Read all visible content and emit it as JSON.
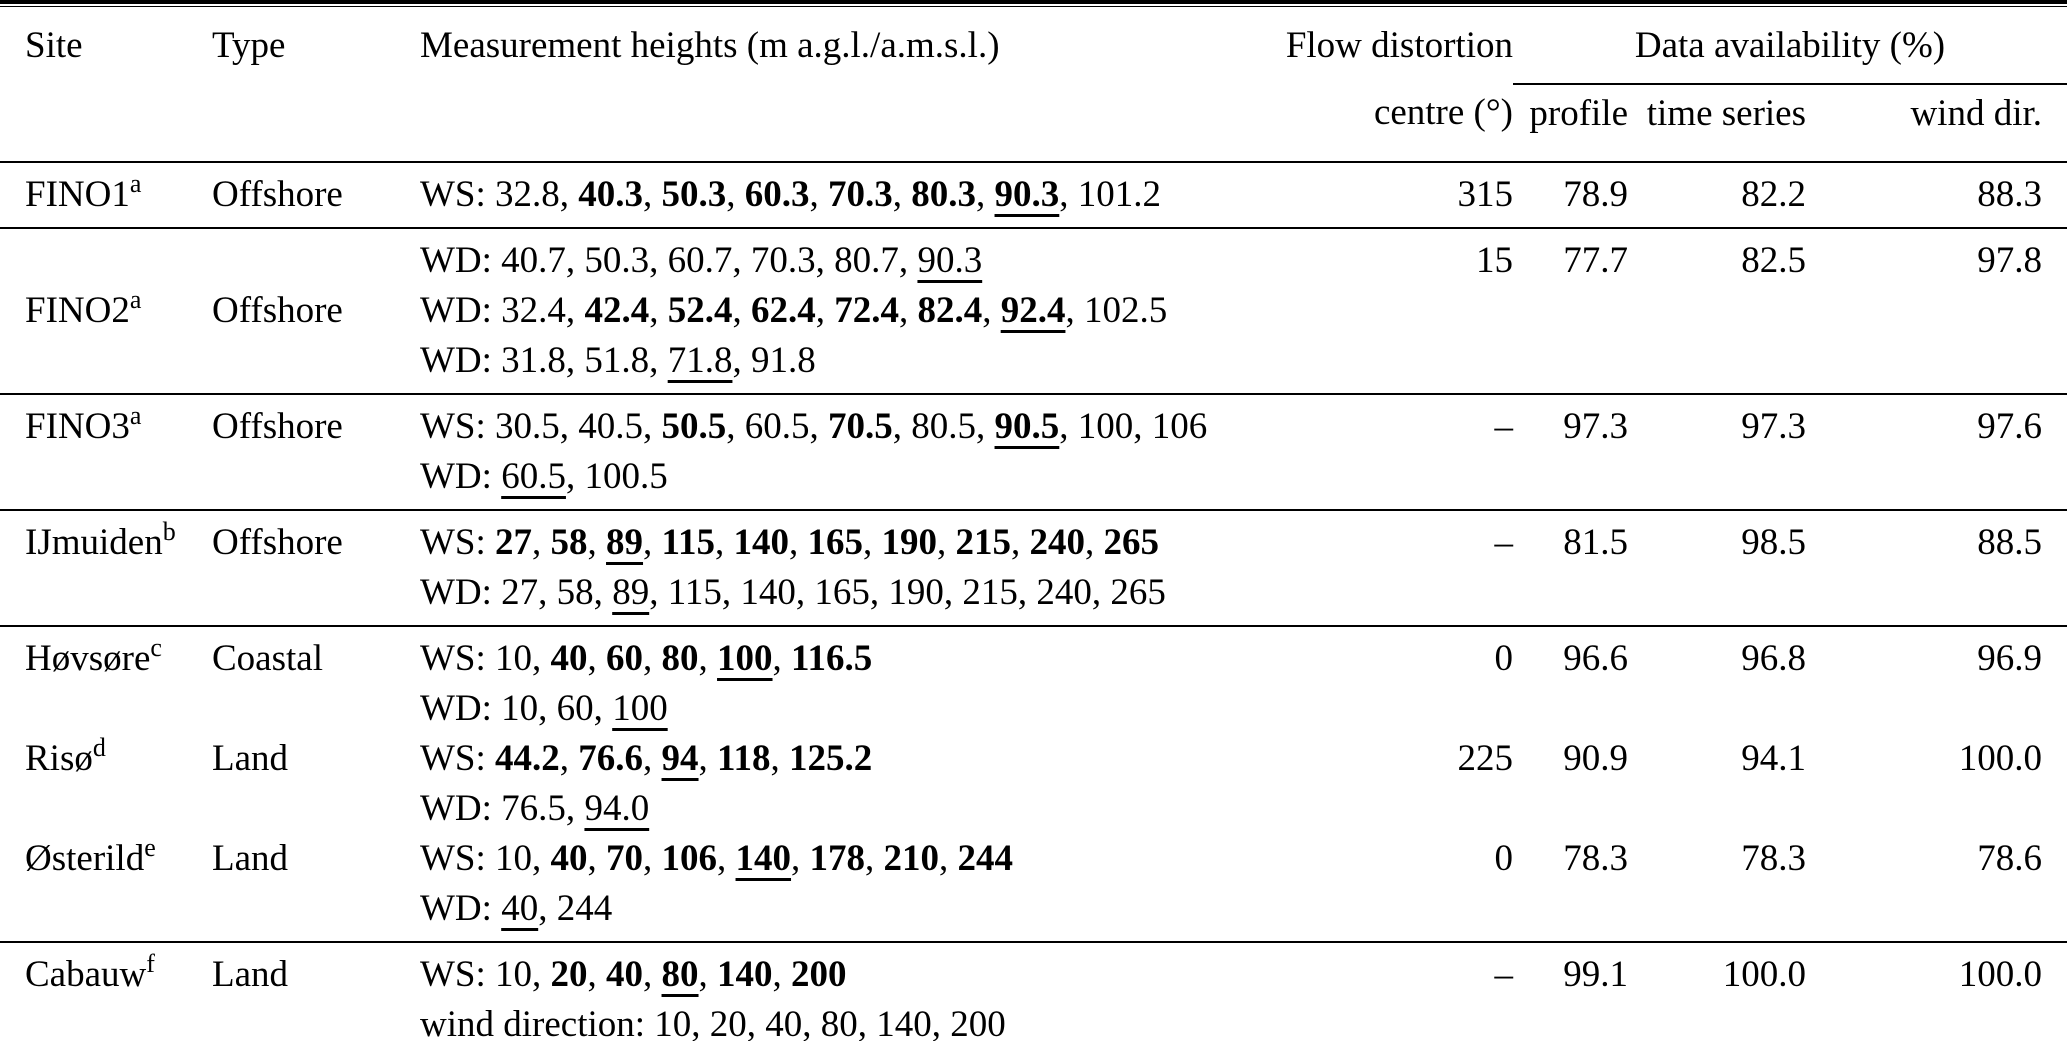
{
  "header": {
    "site": "Site",
    "type": "Type",
    "heights": "Measurement heights (m a.g.l./a.m.s.l.)",
    "flow_distortion_line1": "Flow distortion",
    "flow_distortion_line2": "centre (°)",
    "data_availability": "Data availability (%)",
    "profile": "profile",
    "time_series": "time series",
    "wind_dir": "wind dir."
  },
  "rows": [
    {
      "site": "FINO1",
      "site_sup": "a",
      "type": "Offshore",
      "height_lines": [
        [
          {
            "t": "WS: 32.8, "
          },
          {
            "t": "40.3",
            "b": true
          },
          {
            "t": ", "
          },
          {
            "t": "50.3",
            "b": true
          },
          {
            "t": ", "
          },
          {
            "t": "60.3",
            "b": true
          },
          {
            "t": ", "
          },
          {
            "t": "70.3",
            "b": true
          },
          {
            "t": ", "
          },
          {
            "t": "80.3",
            "b": true
          },
          {
            "t": ", "
          },
          {
            "t": "90.3",
            "b": true,
            "u": true
          },
          {
            "t": ", 101.2"
          }
        ]
      ],
      "centre": "315",
      "profile": "78.9",
      "time_series": "82.2",
      "wind_dir": "88.3",
      "rule_below": true
    },
    {
      "site": "FINO2",
      "site_sup": "a",
      "type": "Offshore",
      "height_lines": [
        [
          {
            "t": "WD: 40.7, 50.3, 60.7, 70.3, 80.7, "
          },
          {
            "t": "90.3",
            "u": true
          }
        ],
        [
          {
            "t": "WD: 32.4, "
          },
          {
            "t": "42.4",
            "b": true
          },
          {
            "t": ", "
          },
          {
            "t": "52.4",
            "b": true
          },
          {
            "t": ", "
          },
          {
            "t": "62.4",
            "b": true
          },
          {
            "t": ", "
          },
          {
            "t": "72.4",
            "b": true
          },
          {
            "t": ", "
          },
          {
            "t": "82.4",
            "b": true
          },
          {
            "t": ", "
          },
          {
            "t": "92.4",
            "b": true,
            "u": true
          },
          {
            "t": ", 102.5"
          }
        ],
        [
          {
            "t": "WD: 31.8, 51.8, "
          },
          {
            "t": "71.8",
            "u": true
          },
          {
            "t": ", 91.8"
          }
        ]
      ],
      "centre": "15",
      "profile": "77.7",
      "time_series": "82.5",
      "wind_dir": "97.8",
      "rule_below": true
    },
    {
      "site": "FINO3",
      "site_sup": "a",
      "type": "Offshore",
      "height_lines": [
        [
          {
            "t": "WS: 30.5, 40.5, "
          },
          {
            "t": "50.5",
            "b": true
          },
          {
            "t": ", 60.5, "
          },
          {
            "t": "70.5",
            "b": true
          },
          {
            "t": ", 80.5, "
          },
          {
            "t": "90.5",
            "b": true,
            "u": true
          },
          {
            "t": ", 100, 106"
          }
        ],
        [
          {
            "t": "WD: "
          },
          {
            "t": "60.5",
            "u": true
          },
          {
            "t": ", 100.5"
          }
        ]
      ],
      "centre": "–",
      "profile": "97.3",
      "time_series": "97.3",
      "wind_dir": "97.6",
      "rule_below": true
    },
    {
      "site": "IJmuiden",
      "site_sup": "b",
      "type": "Offshore",
      "height_lines": [
        [
          {
            "t": "WS: "
          },
          {
            "t": "27",
            "b": true
          },
          {
            "t": ", "
          },
          {
            "t": "58",
            "b": true
          },
          {
            "t": ", "
          },
          {
            "t": "89",
            "b": true,
            "u": true
          },
          {
            "t": ", "
          },
          {
            "t": "115",
            "b": true
          },
          {
            "t": ", "
          },
          {
            "t": "140",
            "b": true
          },
          {
            "t": ", "
          },
          {
            "t": "165",
            "b": true
          },
          {
            "t": ", "
          },
          {
            "t": "190",
            "b": true
          },
          {
            "t": ", "
          },
          {
            "t": "215",
            "b": true
          },
          {
            "t": ", "
          },
          {
            "t": "240",
            "b": true
          },
          {
            "t": ", "
          },
          {
            "t": "265",
            "b": true
          }
        ],
        [
          {
            "t": "WD: 27, 58, "
          },
          {
            "t": "89",
            "u": true
          },
          {
            "t": ", 115, 140, 165, 190, 215, 240, 265"
          }
        ]
      ],
      "centre": "–",
      "profile": "81.5",
      "time_series": "98.5",
      "wind_dir": "88.5",
      "rule_below": true
    },
    {
      "site": "Høvsøre",
      "site_sup": "c",
      "type": "Coastal",
      "height_lines": [
        [
          {
            "t": "WS: 10, "
          },
          {
            "t": "40",
            "b": true
          },
          {
            "t": ", "
          },
          {
            "t": "60",
            "b": true
          },
          {
            "t": ", "
          },
          {
            "t": "80",
            "b": true
          },
          {
            "t": ", "
          },
          {
            "t": "100",
            "b": true,
            "u": true
          },
          {
            "t": ", "
          },
          {
            "t": "116.5",
            "b": true
          }
        ],
        [
          {
            "t": "WD: 10, 60, "
          },
          {
            "t": "100",
            "u": true
          }
        ]
      ],
      "centre": "0",
      "profile": "96.6",
      "time_series": "96.8",
      "wind_dir": "96.9",
      "rule_below": false
    },
    {
      "site": "Risø",
      "site_sup": "d",
      "type": "Land",
      "height_lines": [
        [
          {
            "t": "WS: "
          },
          {
            "t": "44.2",
            "b": true
          },
          {
            "t": ", "
          },
          {
            "t": "76.6",
            "b": true
          },
          {
            "t": ", "
          },
          {
            "t": "94",
            "b": true,
            "u": true
          },
          {
            "t": ", "
          },
          {
            "t": "118",
            "b": true
          },
          {
            "t": ", "
          },
          {
            "t": "125.2",
            "b": true
          }
        ],
        [
          {
            "t": "WD: 76.5, "
          },
          {
            "t": "94.0",
            "u": true
          }
        ]
      ],
      "centre": "225",
      "profile": "90.9",
      "time_series": "94.1",
      "wind_dir": "100.0",
      "rule_below": false
    },
    {
      "site": "Østerild",
      "site_sup": "e",
      "type": "Land",
      "height_lines": [
        [
          {
            "t": "WS: 10, "
          },
          {
            "t": "40",
            "b": true
          },
          {
            "t": ", "
          },
          {
            "t": "70",
            "b": true
          },
          {
            "t": ", "
          },
          {
            "t": "106",
            "b": true
          },
          {
            "t": ", "
          },
          {
            "t": "140",
            "b": true,
            "u": true
          },
          {
            "t": ", "
          },
          {
            "t": "178",
            "b": true
          },
          {
            "t": ", "
          },
          {
            "t": "210",
            "b": true
          },
          {
            "t": ", "
          },
          {
            "t": "244",
            "b": true
          }
        ],
        [
          {
            "t": "WD: "
          },
          {
            "t": "40",
            "u": true
          },
          {
            "t": ", 244"
          }
        ]
      ],
      "centre": "0",
      "profile": "78.3",
      "time_series": "78.3",
      "wind_dir": "78.6",
      "rule_below": true
    },
    {
      "site": "Cabauw",
      "site_sup": "f",
      "type": "Land",
      "height_lines": [
        [
          {
            "t": "WS: 10, "
          },
          {
            "t": "20",
            "b": true
          },
          {
            "t": ", "
          },
          {
            "t": "40",
            "b": true
          },
          {
            "t": ", "
          },
          {
            "t": "80",
            "b": true,
            "u": true
          },
          {
            "t": ", "
          },
          {
            "t": "140",
            "b": true
          },
          {
            "t": ", "
          },
          {
            "t": "200",
            "b": true
          }
        ],
        [
          {
            "t": "wind direction: 10, 20, 40, "
          },
          {
            "t": "80",
            "u": true
          },
          {
            "t": ", 140, 200"
          }
        ]
      ],
      "centre": "–",
      "profile": "99.1",
      "time_series": "100.0",
      "wind_dir": "100.0",
      "rule_below": false
    }
  ]
}
